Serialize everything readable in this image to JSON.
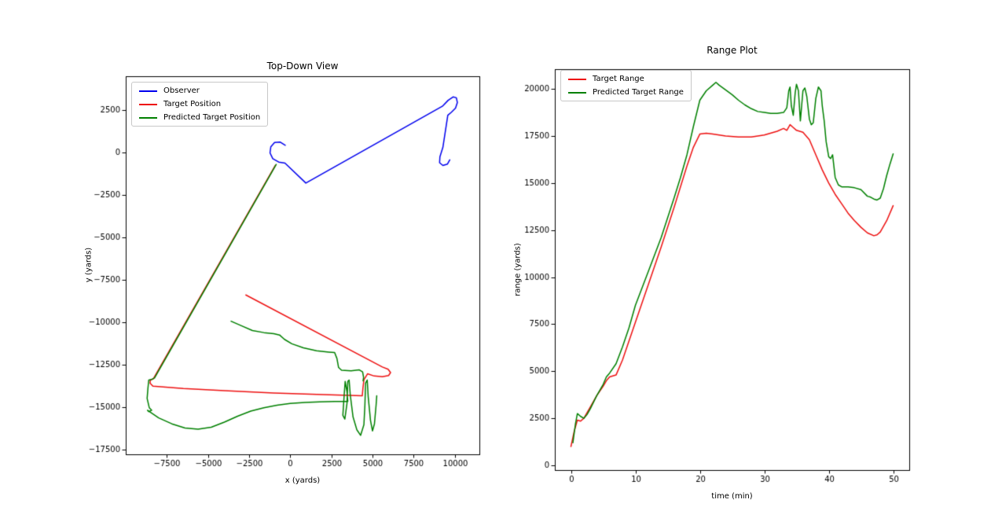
{
  "figure": {
    "background": "#ffffff"
  },
  "chart_data": [
    {
      "type": "line",
      "title": "Top-Down View",
      "xlabel": "x (yards)",
      "ylabel": "y (yards)",
      "xlim": [
        -10000,
        11500
      ],
      "ylim": [
        -17800,
        4500
      ],
      "xticks": [
        -7500,
        -5000,
        -2500,
        0,
        2500,
        5000,
        7500,
        10000
      ],
      "yticks": [
        2500,
        0,
        -2500,
        -5000,
        -7500,
        -10000,
        -12500,
        -15000,
        -17500
      ],
      "legend_position": "upper left",
      "grid": false,
      "series": [
        {
          "name": "Observer",
          "color": "#0000ee",
          "x": [
            -300,
            -620,
            -950,
            -1180,
            -1230,
            -1060,
            -700,
            -320,
            950,
            9250,
            9600,
            9900,
            10100,
            10160,
            10050,
            9800,
            9580,
            9280,
            9100,
            9080,
            9280,
            9560,
            9700
          ],
          "y": [
            430,
            620,
            590,
            340,
            -20,
            -360,
            -560,
            -620,
            -1800,
            2730,
            3080,
            3280,
            3230,
            2950,
            2620,
            2380,
            2200,
            300,
            -250,
            -600,
            -760,
            -680,
            -430
          ]
        },
        {
          "name": "Target Position",
          "color": "#ee1111",
          "x": [
            -2700,
            5600,
            5950,
            6100,
            5980,
            5600,
            5100,
            4700,
            4480,
            4420,
            4380,
            2000,
            -1000,
            -4000,
            -6500,
            -8350,
            -8520,
            -8500,
            -8330,
            -900
          ],
          "y": [
            -8400,
            -12650,
            -12780,
            -12980,
            -13150,
            -13220,
            -13180,
            -13050,
            -13400,
            -13900,
            -14350,
            -14280,
            -14180,
            -14050,
            -13920,
            -13780,
            -13600,
            -13420,
            -13350,
            -750
          ]
        },
        {
          "name": "Predicted Target Position",
          "color": "#008000",
          "x": [
            -850,
            -8250,
            -8420,
            -8600,
            -8650,
            -8700,
            -8570,
            -8420,
            -8600,
            -8680,
            -8000,
            -7200,
            -6400,
            -5600,
            -4800,
            -4000,
            -3200,
            -2400,
            -1600,
            -800,
            0,
            900,
            1800,
            2700,
            3500,
            3450,
            3340,
            3280,
            3200,
            3320,
            3450,
            3500,
            3580,
            3650,
            3820,
            4050,
            4280,
            4480,
            4540,
            4580,
            4680,
            4740,
            4880,
            5000,
            5120,
            5220,
            5260,
            null,
            -3600,
            -3000,
            -2300,
            -1600,
            -1000,
            -650,
            -350,
            100,
            800,
            1600,
            2350,
            2700,
            2840,
            2940,
            3120,
            3700,
            4200,
            4400,
            4460,
            4430
          ],
          "y": [
            -700,
            -13300,
            -13380,
            -13420,
            -13900,
            -14500,
            -15050,
            -15200,
            -15280,
            -15200,
            -15650,
            -16000,
            -16250,
            -16320,
            -16200,
            -15900,
            -15550,
            -15250,
            -15050,
            -14900,
            -14800,
            -14740,
            -14700,
            -14680,
            -14680,
            -14100,
            -13500,
            -14300,
            -15500,
            -15720,
            -14800,
            -13500,
            -13420,
            -14300,
            -15600,
            -16350,
            -16680,
            -16050,
            -14900,
            -13600,
            -13420,
            -14400,
            -15800,
            -16420,
            -16000,
            -14900,
            -14350,
            null,
            -9950,
            -10200,
            -10500,
            -10620,
            -10680,
            -10760,
            -11020,
            -11280,
            -11520,
            -11690,
            -11770,
            -11800,
            -12150,
            -12680,
            -12840,
            -12870,
            -12820,
            -12940,
            -13260,
            -13470
          ]
        }
      ]
    },
    {
      "type": "line",
      "title": "Range Plot",
      "xlabel": "time (min)",
      "ylabel": "range (yards)",
      "xlim": [
        -2.5,
        52.5
      ],
      "ylim": [
        -250,
        21050
      ],
      "xticks": [
        0,
        10,
        20,
        30,
        40,
        50
      ],
      "yticks": [
        0,
        2500,
        5000,
        7500,
        10000,
        12500,
        15000,
        17500,
        20000
      ],
      "legend_position": "upper left",
      "grid": false,
      "series": [
        {
          "name": "Target Range",
          "color": "#ee1111",
          "x": [
            0,
            0.5,
            1,
            1.5,
            2,
            3,
            4,
            5,
            5.5,
            6,
            7,
            8,
            10,
            12,
            14,
            16,
            18,
            19,
            20,
            21,
            22,
            24,
            26,
            28,
            30,
            32,
            33,
            33.5,
            34,
            34.5,
            35,
            36,
            37,
            38,
            39,
            40,
            41,
            42,
            43,
            44,
            45,
            46,
            47,
            47.5,
            48,
            49,
            50
          ],
          "y": [
            1000,
            1800,
            2400,
            2350,
            2500,
            3100,
            3700,
            4200,
            4500,
            4700,
            4800,
            5600,
            7600,
            9600,
            11600,
            13700,
            15900,
            16900,
            17600,
            17650,
            17600,
            17500,
            17450,
            17450,
            17550,
            17750,
            17900,
            17800,
            18100,
            17950,
            17800,
            17700,
            17300,
            16500,
            15700,
            15000,
            14400,
            13900,
            13400,
            13000,
            12650,
            12350,
            12200,
            12250,
            12400,
            13000,
            13800
          ]
        },
        {
          "name": "Predicted Target Range",
          "color": "#008000",
          "x": [
            0.3,
            0.7,
            1,
            1.5,
            2,
            2.5,
            3,
            4,
            5,
            5.5,
            6,
            7,
            8,
            9,
            10,
            12,
            14,
            16,
            17,
            18,
            19,
            20,
            21,
            22,
            22.5,
            23,
            24,
            25,
            26,
            27,
            28,
            29,
            30,
            31,
            32,
            33,
            33.5,
            33.8,
            34,
            34.2,
            34.5,
            34.8,
            35,
            35.3,
            35.6,
            36,
            36.3,
            36.6,
            37,
            37.3,
            37.6,
            38,
            38.4,
            38.8,
            39,
            39.3,
            39.6,
            40,
            40.3,
            40.6,
            41,
            41.5,
            42,
            43,
            44,
            45,
            46,
            46.5,
            47,
            47.5,
            48,
            48.5,
            49,
            49.5,
            50
          ],
          "y": [
            1200,
            2200,
            2750,
            2600,
            2500,
            2700,
            3000,
            3700,
            4300,
            4700,
            4900,
            5400,
            6300,
            7300,
            8500,
            10300,
            12100,
            14200,
            15300,
            16500,
            18000,
            19400,
            19900,
            20200,
            20350,
            20200,
            19950,
            19700,
            19400,
            19150,
            18950,
            18800,
            18750,
            18700,
            18700,
            18750,
            19000,
            19900,
            20100,
            19100,
            18600,
            19800,
            20250,
            19900,
            18300,
            19900,
            20050,
            19600,
            18400,
            18100,
            18200,
            19500,
            20100,
            19900,
            19100,
            18300,
            17200,
            16400,
            16300,
            16500,
            15300,
            14900,
            14800,
            14800,
            14750,
            14650,
            14300,
            14250,
            14150,
            14100,
            14200,
            14700,
            15400,
            16000,
            16550
          ]
        }
      ]
    }
  ]
}
